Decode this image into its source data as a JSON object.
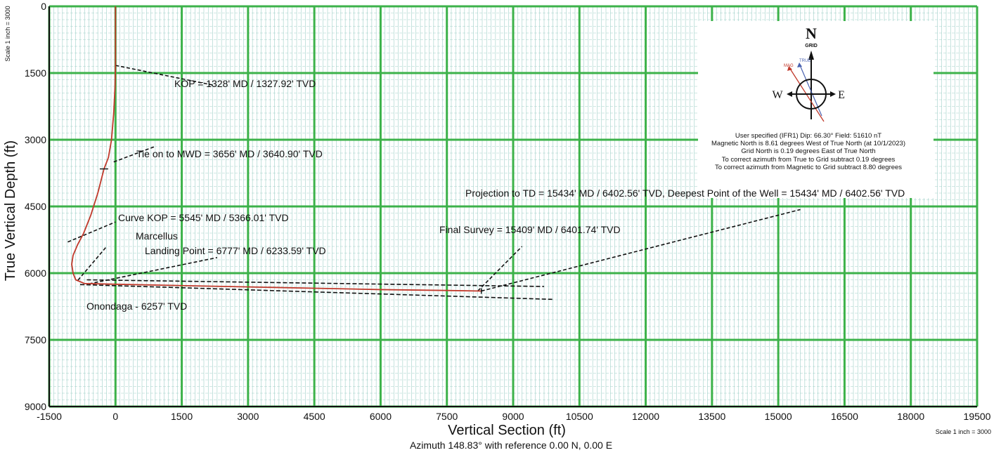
{
  "chart_data": {
    "type": "line",
    "xlabel": "Vertical Section (ft)",
    "ylabel": "True Vertical Depth (ft)",
    "subtitle": "Azimuth 148.83° with reference 0.00 N, 0.00 E",
    "scale_label_x": "Scale 1 inch = 3000",
    "scale_label_y": "Scale 1 inch = 3000",
    "xlim": [
      -1500,
      19500
    ],
    "ylim": [
      0,
      9000
    ],
    "y_inverted": true,
    "grid": true,
    "x_ticks": [
      -1500,
      0,
      1500,
      3000,
      4500,
      6000,
      7500,
      9000,
      10500,
      12000,
      13500,
      15000,
      16500,
      18000,
      19500
    ],
    "y_ticks": [
      0,
      1500,
      3000,
      4500,
      6000,
      7500,
      9000
    ],
    "series": [
      {
        "name": "",
        "color": "#c0392b",
        "x": [
          0,
          0,
          -10,
          -40,
          -90,
          -160,
          -260,
          -400,
          -560,
          -720,
          -860,
          -960,
          -990,
          -960,
          -900,
          -700,
          0,
          1500,
          3000,
          4500,
          6000,
          7500,
          8280
        ],
        "y": [
          0,
          1328,
          1800,
          2400,
          3000,
          3400,
          3656,
          4200,
          4700,
          5100,
          5366,
          5600,
          5800,
          6000,
          6150,
          6233.59,
          6250,
          6280,
          6310,
          6340,
          6370,
          6390,
          6402.56
        ]
      }
    ],
    "formation_lines": [
      {
        "label": "Marcellus",
        "x": [
          -650,
          9700
        ],
        "y": [
          6150,
          6300
        ]
      },
      {
        "label": "Onondaga - 6257' TVD",
        "x": [
          -800,
          9900
        ],
        "y": [
          6257,
          6590
        ]
      }
    ],
    "annotations": [
      {
        "text": "KOP = 1328' MD / 1327.92' TVD"
      },
      {
        "text": "Tie on to MWD = 3656' MD / 3640.90' TVD"
      },
      {
        "text": "Curve KOP = 5545' MD / 5366.01' TVD"
      },
      {
        "text": "Marcellus"
      },
      {
        "text": "Landing Point = 6777' MD / 6233.59' TVD"
      },
      {
        "text": "Final Survey = 15409' MD / 6401.74' TVD"
      },
      {
        "text": "Projection to TD = 15434' MD / 6402.56' TVD, Deepest Point of the Well = 15434' MD / 6402.56' TVD"
      },
      {
        "text": "Onondaga - 6257' TVD"
      }
    ],
    "north_legend": {
      "north_letter": "N",
      "grid_label": "GRID",
      "west_letter": "W",
      "east_letter": "E",
      "true_label": "TRUE",
      "mag_label": "MAG",
      "lines": [
        "User specified (IFR1) Dip: 66.30°  Field: 51610 nT",
        "Magnetic North is 8.61 degrees West of True North (at 10/1/2023)",
        "Grid North is 0.19 degrees East of True North",
        "To correct azimuth from True to Grid subtract 0.19 degrees",
        "To correct azimuth from Magnetic to Grid subtract 8.80 degrees"
      ]
    },
    "colors": {
      "major_grid": "#3cb24a",
      "minor_grid": "#9fd0c8",
      "well_path": "#c0392b",
      "leader": "#111111",
      "true_north": "#4a62b0",
      "mag_north": "#c0392b"
    }
  }
}
